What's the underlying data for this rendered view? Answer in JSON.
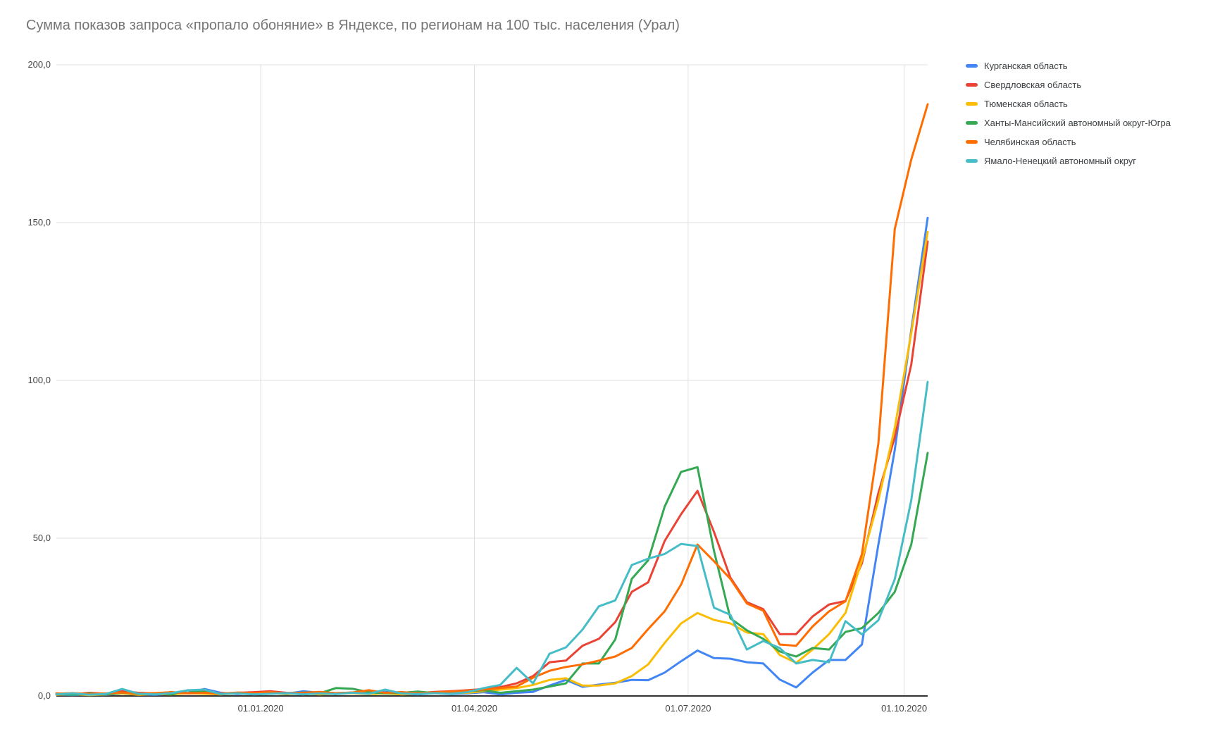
{
  "title": "Сумма показов запроса «пропало обоняние» в Яндексе, по регионам на 100 тыс. населения (Урал)",
  "chart_data": {
    "type": "line",
    "title": "Сумма показов запроса «пропало обоняние» в Яндексе, по регионам на 100 тыс. населения (Урал)",
    "xlabel": "",
    "ylabel": "",
    "grid": true,
    "legend_position": "right",
    "x_unit": "weeks",
    "ylim": [
      0,
      200
    ],
    "y_ticks": [
      {
        "label": "0,0",
        "value": 0
      },
      {
        "label": "50,0",
        "value": 50
      },
      {
        "label": "100,0",
        "value": 100
      },
      {
        "label": "150,0",
        "value": 150
      },
      {
        "label": "200,0",
        "value": 200
      }
    ],
    "x_ticks": [
      {
        "label": "01.01.2020",
        "week": 12.43
      },
      {
        "label": "01.04.2020",
        "week": 25.43
      },
      {
        "label": "01.07.2020",
        "week": 38.43
      },
      {
        "label": "01.10.2020",
        "week": 51.57
      }
    ],
    "series": [
      {
        "name": "Курганская область",
        "color": "#4285f4",
        "values": [
          0.5,
          0.3,
          0.6,
          0.4,
          0.8,
          0.5,
          0.4,
          0.7,
          1.0,
          2.2,
          1.0,
          0.6,
          0.9,
          1.2,
          0.7,
          1.5,
          1.0,
          0.6,
          1.1,
          0.8,
          1.3,
          0.7,
          0.5,
          0.9,
          0.6,
          0.8,
          1.2,
          0.5,
          1.0,
          1.3,
          3.3,
          5.1,
          2.9,
          3.6,
          4.2,
          5.1,
          5.0,
          7.4,
          11.0,
          14.4,
          12.0,
          11.8,
          10.7,
          10.3,
          5.2,
          2.7,
          7.4,
          11.4,
          11.4,
          16.3,
          48.0,
          78.0,
          116.0,
          151.5
        ]
      },
      {
        "name": "Свердловская область",
        "color": "#ea4335",
        "values": [
          0.8,
          0.5,
          1.0,
          0.7,
          1.5,
          1.0,
          0.8,
          1.2,
          0.9,
          1.4,
          0.8,
          1.0,
          1.2,
          1.5,
          1.0,
          0.8,
          1.2,
          0.9,
          1.1,
          0.8,
          1.0,
          1.2,
          0.9,
          1.3,
          1.5,
          1.8,
          2.2,
          2.8,
          4.0,
          6.3,
          10.7,
          11.2,
          15.9,
          18.1,
          23.4,
          33.0,
          36.0,
          49.1,
          57.6,
          65.0,
          52.0,
          37.5,
          29.7,
          27.5,
          19.6,
          19.6,
          25.2,
          29.0,
          30.1,
          42.0,
          64.3,
          82.0,
          105.0,
          144.0
        ]
      },
      {
        "name": "Тюменская область",
        "color": "#fbbc04",
        "values": [
          0.4,
          0.6,
          0.3,
          0.5,
          0.8,
          0.4,
          0.6,
          0.5,
          0.9,
          0.7,
          0.5,
          0.8,
          0.6,
          0.9,
          0.6,
          0.8,
          0.5,
          0.7,
          0.9,
          0.6,
          0.8,
          0.5,
          0.7,
          0.9,
          0.8,
          1.0,
          1.5,
          2.0,
          2.5,
          3.5,
          5.1,
          5.6,
          3.3,
          3.3,
          4.0,
          6.3,
          10.0,
          16.8,
          23.0,
          26.3,
          24.1,
          23.0,
          20.1,
          19.6,
          13.0,
          10.5,
          14.7,
          19.6,
          26.3,
          43.0,
          62.0,
          85.0,
          115.0,
          147.0
        ]
      },
      {
        "name": "Ханты-Мансийский автономный округ-Югра",
        "color": "#34a853",
        "values": [
          0.6,
          0.4,
          0.8,
          0.5,
          1.0,
          0.6,
          0.9,
          0.5,
          1.8,
          1.2,
          0.6,
          0.9,
          0.7,
          1.0,
          0.7,
          1.1,
          0.8,
          2.5,
          2.3,
          1.2,
          0.8,
          1.0,
          1.4,
          0.9,
          1.2,
          1.5,
          1.8,
          1.0,
          1.5,
          2.0,
          3.0,
          4.0,
          10.3,
          10.3,
          17.9,
          37.1,
          43.0,
          60.0,
          71.0,
          72.5,
          46.0,
          24.6,
          20.8,
          18.1,
          14.1,
          12.5,
          15.2,
          14.7,
          20.3,
          21.5,
          26.3,
          33.0,
          48.0,
          77.0
        ]
      },
      {
        "name": "Челябинская область",
        "color": "#ff6d01",
        "values": [
          0.7,
          0.9,
          0.6,
          0.8,
          1.1,
          0.7,
          0.9,
          1.2,
          0.8,
          1.0,
          0.7,
          1.1,
          0.9,
          1.2,
          0.8,
          1.0,
          1.3,
          0.9,
          1.1,
          1.8,
          1.0,
          1.2,
          0.9,
          1.1,
          1.4,
          1.6,
          2.0,
          2.5,
          3.0,
          5.8,
          8.0,
          9.2,
          10.0,
          11.2,
          12.5,
          15.2,
          21.2,
          26.8,
          35.3,
          48.0,
          42.7,
          37.1,
          29.3,
          27.0,
          16.3,
          15.9,
          22.0,
          26.8,
          30.0,
          44.9,
          80.0,
          148.0,
          170.0,
          187.5
        ]
      },
      {
        "name": "Ямало-Ненецкий автономный округ",
        "color": "#46bdc6",
        "values": [
          0.5,
          0.8,
          0.4,
          0.6,
          2.2,
          0.7,
          0.5,
          0.9,
          1.8,
          2.0,
          0.6,
          0.8,
          0.5,
          0.7,
          0.9,
          0.5,
          0.8,
          0.6,
          1.0,
          0.7,
          2.0,
          0.8,
          0.6,
          0.9,
          0.7,
          1.2,
          2.5,
          3.5,
          8.9,
          4.0,
          13.4,
          15.4,
          21.0,
          28.4,
          30.3,
          41.5,
          43.5,
          45.0,
          48.2,
          47.5,
          28.0,
          25.7,
          14.7,
          17.4,
          15.2,
          10.3,
          11.4,
          10.7,
          23.7,
          19.5,
          24.0,
          37.0,
          62.0,
          99.5
        ]
      }
    ]
  },
  "style": {
    "grid_color": "#e0e0e0",
    "axis_color": "#333333",
    "tick_label_color": "#444444",
    "title_color": "#757575",
    "legend_text_color": "#3c4043"
  }
}
